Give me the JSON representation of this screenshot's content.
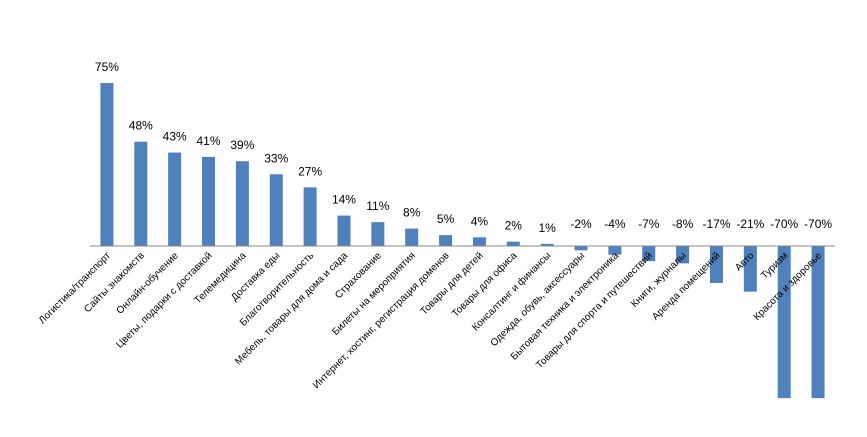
{
  "chart_data": {
    "type": "bar",
    "categories": [
      "Логистика/транспорт",
      "Сайты знакомств",
      "Онлайн-обучение",
      "Цветы, подарки с доставкой",
      "Телемедицина",
      "Доставка еды",
      "Благотворительность",
      "Мебель, товары для дома и сада",
      "Страхование",
      "Билеты на мероприятия",
      "Интернет, хостинг, регистрация доменов",
      "Товары для детей",
      "Товары для офиса",
      "Консалтинг и финансы",
      "Одежда, обувь, аксессуары",
      "Бытовая техника и электроника",
      "Товары для спорта и путешествий",
      "Книги, журналы",
      "Аренда помещений",
      "Авто",
      "Туризм",
      "Красота и здоровье"
    ],
    "values": [
      75,
      48,
      43,
      41,
      39,
      33,
      27,
      14,
      11,
      8,
      5,
      4,
      2,
      1,
      -2,
      -4,
      -7,
      -8,
      -17,
      -21,
      -70,
      -70
    ],
    "value_labels": [
      "75%",
      "48%",
      "43%",
      "41%",
      "39%",
      "33%",
      "27%",
      "14%",
      "11%",
      "8%",
      "5%",
      "4%",
      "2%",
      "1%",
      "-2%",
      "-4%",
      "-7%",
      "-8%",
      "-17%",
      "-21%",
      "-70%",
      "-70%"
    ],
    "color": "#4f81bd"
  }
}
